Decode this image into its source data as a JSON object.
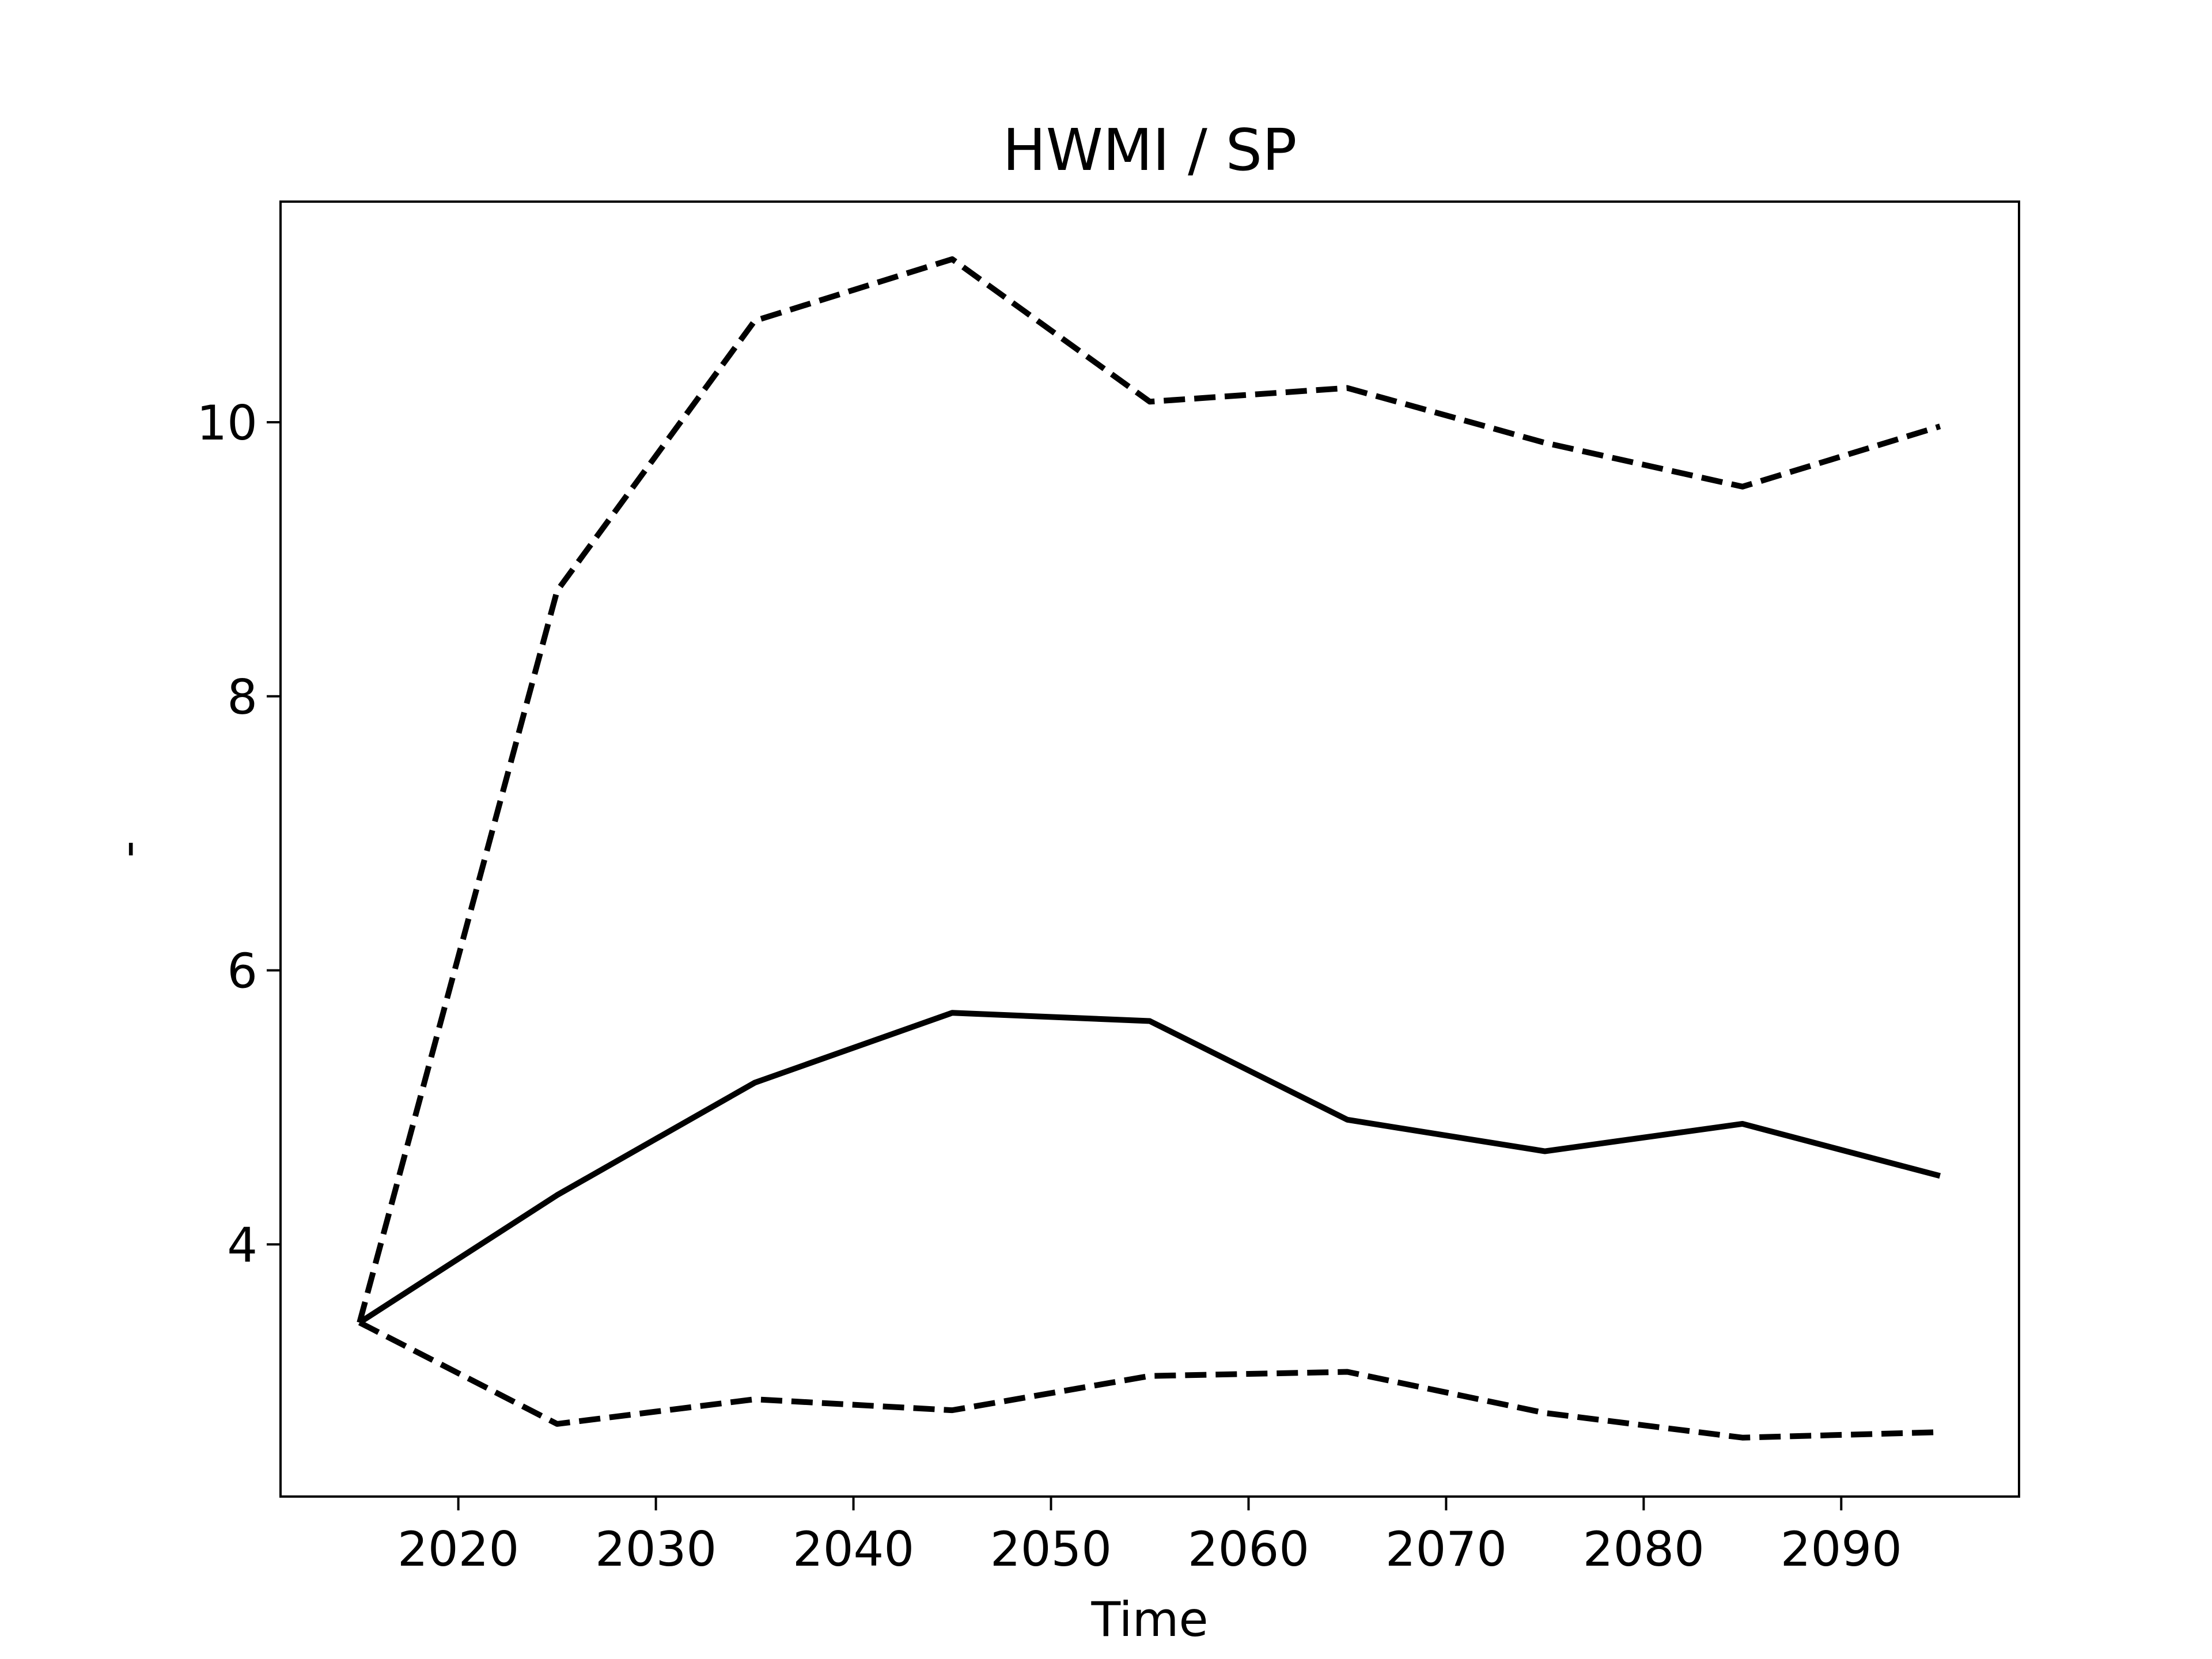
{
  "chart_data": {
    "type": "line",
    "title": "HWMI / SP",
    "x_label": "Time",
    "y_label": "-",
    "x": [
      2015,
      2025,
      2035,
      2045,
      2055,
      2065,
      2075,
      2085,
      2095
    ],
    "series": [
      {
        "color": "#000000",
        "style": "solid",
        "values": [
          3.43,
          4.36,
          5.18,
          5.69,
          5.63,
          4.91,
          4.68,
          4.88,
          4.5
        ]
      },
      {
        "color": "#000000",
        "style": "dashed",
        "values": [
          3.43,
          8.77,
          10.74,
          11.19,
          10.15,
          10.25,
          9.85,
          9.53,
          9.97
        ]
      },
      {
        "color": "#000000",
        "style": "dashed",
        "values": [
          3.43,
          2.69,
          2.87,
          2.79,
          3.04,
          3.07,
          2.77,
          2.59,
          2.63
        ]
      }
    ],
    "xlim": [
      2011,
      2099
    ],
    "xticks": [
      2020,
      2030,
      2040,
      2050,
      2060,
      2070,
      2080,
      2090
    ],
    "ylim": [
      2.16,
      11.61
    ],
    "yticks": [
      4,
      6,
      8,
      10
    ],
    "grid": false
  }
}
